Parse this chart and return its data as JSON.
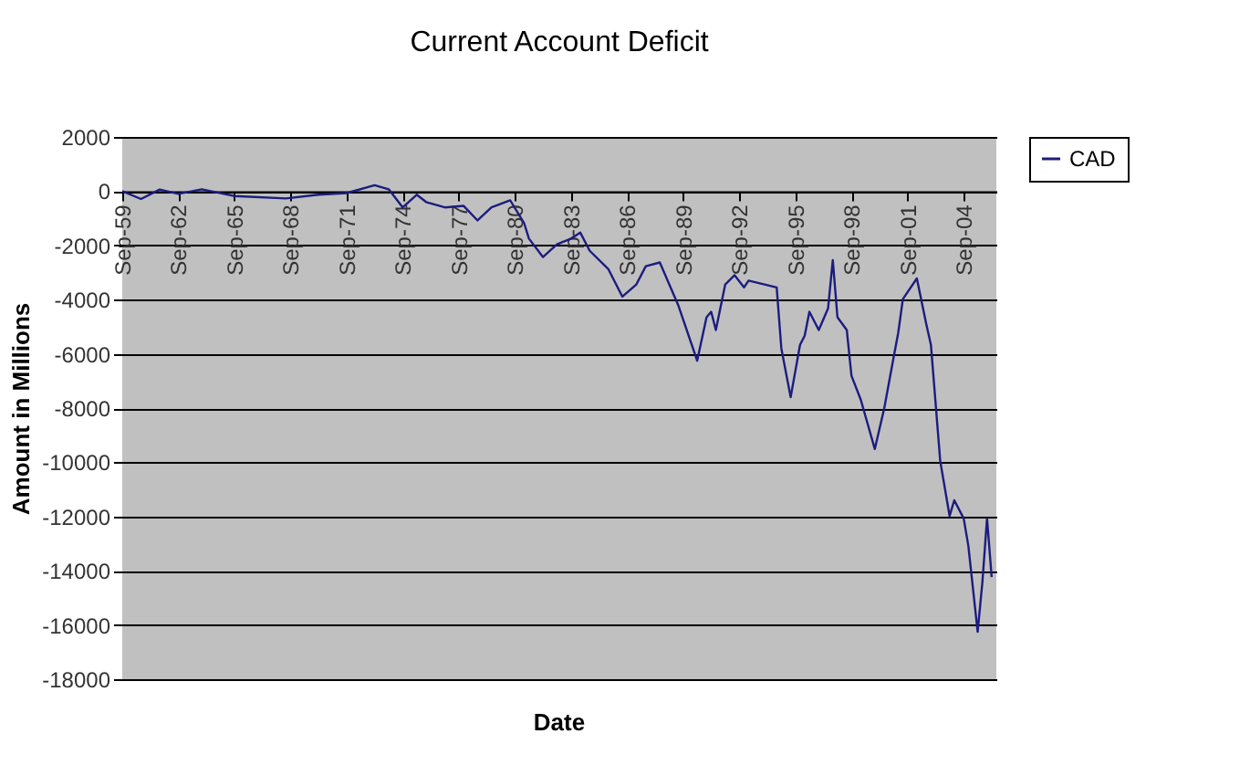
{
  "chart_data": {
    "type": "line",
    "title": "Current Account Deficit",
    "xlabel": "Date",
    "ylabel": "Amount in Millions",
    "x": [
      "1959-09",
      "1960-09",
      "1961-09",
      "1962-09",
      "1963-12",
      "1965-09",
      "1968-06",
      "1970-03",
      "1971-09",
      "1973-03",
      "1973-12",
      "1974-09",
      "1975-06",
      "1975-12",
      "1976-12",
      "1977-12",
      "1978-09",
      "1979-06",
      "1980-06",
      "1981-03",
      "1981-06",
      "1982-03",
      "1982-12",
      "1983-09",
      "1984-03",
      "1984-09",
      "1985-09",
      "1986-06",
      "1987-03",
      "1987-09",
      "1988-06",
      "1989-06",
      "1990-06",
      "1990-12",
      "1991-03",
      "1991-06",
      "1991-12",
      "1992-06",
      "1992-12",
      "1993-03",
      "1994-09",
      "1994-12",
      "1995-06",
      "1995-12",
      "1996-03",
      "1996-06",
      "1996-12",
      "1997-06",
      "1997-09",
      "1997-12",
      "1998-06",
      "1998-09",
      "1999-03",
      "1999-12",
      "2000-06",
      "2000-12",
      "2001-03",
      "2001-06",
      "2002-03",
      "2002-09",
      "2002-12",
      "2003-06",
      "2003-12",
      "2004-03",
      "2004-09",
      "2004-12",
      "2005-06",
      "2005-09",
      "2005-12",
      "2006-03"
    ],
    "series": [
      {
        "name": "CAD",
        "color": "#1c1c80",
        "values": [
          0,
          -290,
          60,
          -100,
          70,
          -180,
          -270,
          -130,
          -70,
          220,
          70,
          -600,
          -130,
          -400,
          -600,
          -540,
          -1080,
          -600,
          -340,
          -1190,
          -1750,
          -2430,
          -1960,
          -1750,
          -1530,
          -2200,
          -2880,
          -3890,
          -3440,
          -2770,
          -2630,
          -4230,
          -6250,
          -4650,
          -4450,
          -5120,
          -3440,
          -3100,
          -3550,
          -3300,
          -3550,
          -5800,
          -7600,
          -5670,
          -5330,
          -4450,
          -5120,
          -4320,
          -2540,
          -4650,
          -5120,
          -6810,
          -7690,
          -9510,
          -8020,
          -6140,
          -5240,
          -3980,
          -3220,
          -4900,
          -5670,
          -9960,
          -11980,
          -11400,
          -12070,
          -13080,
          -16250,
          -14430,
          -12070,
          -14230
        ]
      }
    ],
    "xlim": [
      "1959-09",
      "2006-06"
    ],
    "xticks": [
      {
        "value": "1959-09",
        "label": "Sep-59"
      },
      {
        "value": "1962-09",
        "label": "Sep-62"
      },
      {
        "value": "1965-09",
        "label": "Sep-65"
      },
      {
        "value": "1968-09",
        "label": "Sep-68"
      },
      {
        "value": "1971-09",
        "label": "Sep-71"
      },
      {
        "value": "1974-09",
        "label": "Sep-74"
      },
      {
        "value": "1977-09",
        "label": "Sep-77"
      },
      {
        "value": "1980-09",
        "label": "Sep-80"
      },
      {
        "value": "1983-09",
        "label": "Sep-83"
      },
      {
        "value": "1986-09",
        "label": "Sep-86"
      },
      {
        "value": "1989-09",
        "label": "Sep-89"
      },
      {
        "value": "1992-09",
        "label": "Sep-92"
      },
      {
        "value": "1995-09",
        "label": "Sep-95"
      },
      {
        "value": "1998-09",
        "label": "Sep-98"
      },
      {
        "value": "2001-09",
        "label": "Sep-01"
      },
      {
        "value": "2004-09",
        "label": "Sep-04"
      }
    ],
    "ylim": [
      -18000,
      2000
    ],
    "yticks": [
      2000,
      0,
      -2000,
      -4000,
      -6000,
      -8000,
      -10000,
      -12000,
      -14000,
      -16000,
      -18000
    ],
    "grid": "y",
    "legend": "right",
    "marker": "none",
    "line_style": "solid"
  }
}
